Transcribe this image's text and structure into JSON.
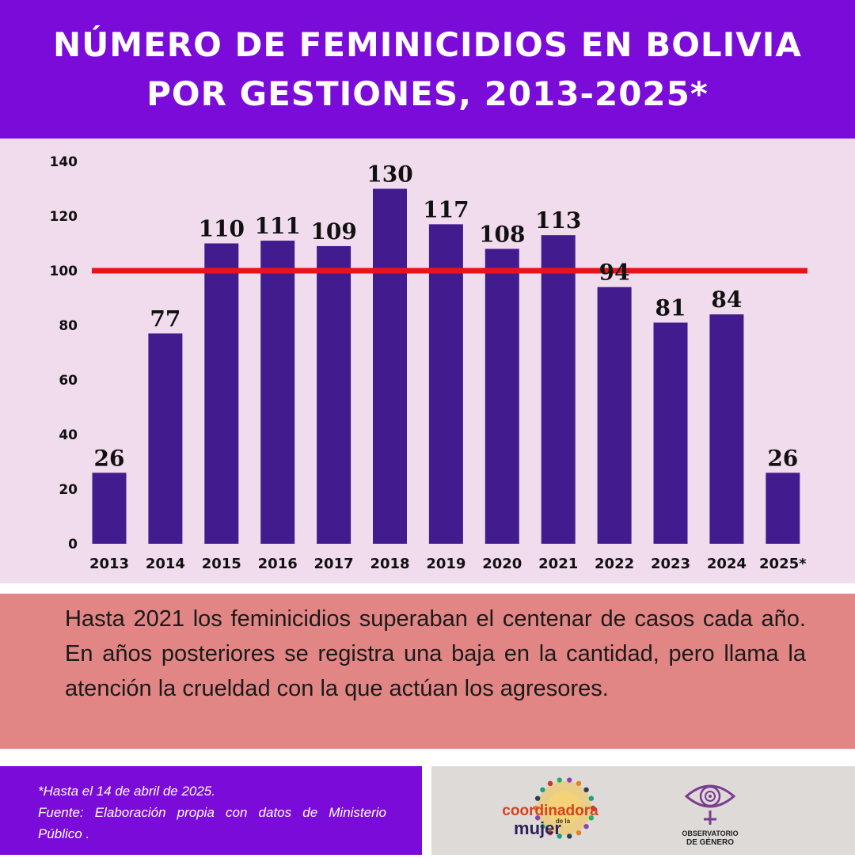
{
  "header": {
    "title_line1": "NÚMERO DE FEMINICIDIOS EN BOLIVIA",
    "title_line2": "POR GESTIONES, 2013-2025*"
  },
  "chart_data": {
    "type": "bar",
    "categories": [
      "2013",
      "2014",
      "2015",
      "2016",
      "2017",
      "2018",
      "2019",
      "2020",
      "2021",
      "2022",
      "2023",
      "2024",
      "2025*"
    ],
    "values": [
      26,
      77,
      110,
      111,
      109,
      130,
      117,
      108,
      113,
      94,
      81,
      84,
      26
    ],
    "data_labels": [
      "26",
      "77",
      "110",
      "111",
      "109",
      "130",
      "117",
      "108",
      "113",
      "94",
      "81",
      "84",
      "26"
    ],
    "yticks": [
      0,
      20,
      40,
      60,
      80,
      100,
      120,
      140
    ],
    "ylim": [
      0,
      140
    ],
    "reference_line": {
      "value": 100,
      "color": "#e8141c"
    },
    "bar_color": "#421c8f",
    "grid": false,
    "legend": "none"
  },
  "note": {
    "text": "Hasta 2021 los feminicidios superaban el centenar de casos cada año. En años posteriores se registra una baja en la cantidad, pero llama la atención la crueldad con la que actúan los agresores."
  },
  "footer": {
    "footnote": "*Hasta el 14 de abril de 2025.",
    "source": "Fuente: Elaboración propia con datos de Ministerio Público ."
  },
  "logos": {
    "coordinadora": {
      "icon": "sun-circle-of-people-icon",
      "line1": "coordinadora",
      "small": "de la",
      "line2": "mujer"
    },
    "observatorio": {
      "icon": "eye-spiral-venus-icon",
      "line1": "OBSERVATORIO",
      "line2": "DE GÉNERO",
      "color": "#7a3c8f"
    }
  },
  "colors": {
    "header_bg": "#7b0bd9",
    "chart_bg": "#f0dcec",
    "note_bg": "#e28585",
    "footer_logo_bg": "#dedad8"
  }
}
